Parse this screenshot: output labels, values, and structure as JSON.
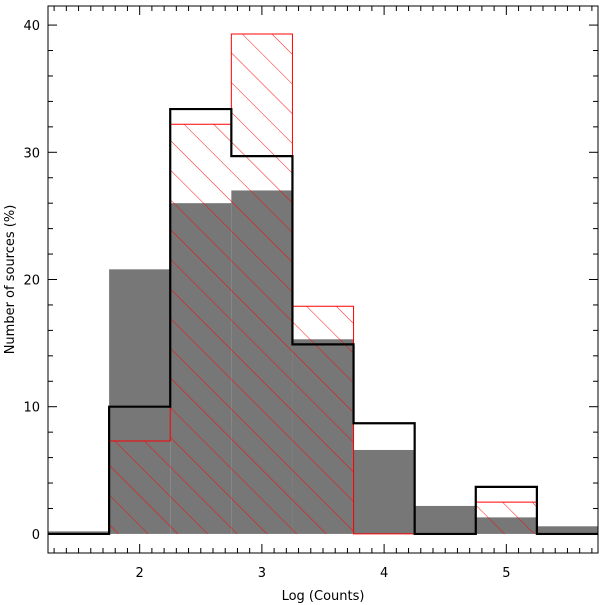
{
  "chart_data": {
    "type": "bar",
    "title": "",
    "xlabel": "Log (Counts)",
    "ylabel": "Number of sources (%)",
    "xlim": [
      1.25,
      5.75
    ],
    "ylim": [
      -1.5,
      41.5
    ],
    "xticks": [
      2,
      3,
      4,
      5
    ],
    "yticks": [
      0,
      10,
      20,
      30,
      40
    ],
    "x_minor_step": 0.1,
    "y_minor_step": 2,
    "grid": false,
    "legend": "none",
    "bin_edges": [
      1.25,
      1.75,
      2.25,
      2.75,
      3.25,
      3.75,
      4.25,
      4.75,
      5.25,
      5.75
    ],
    "series": [
      {
        "style": "filled-gray",
        "color": "#777777",
        "values": [
          0.2,
          20.8,
          26.0,
          27.0,
          15.3,
          6.6,
          2.2,
          1.3,
          0.6
        ]
      },
      {
        "style": "red-hatched",
        "color": "#ff0000",
        "values": [
          0,
          7.3,
          32.2,
          39.3,
          17.9,
          0,
          0,
          2.5,
          0
        ]
      },
      {
        "style": "black-step",
        "color": "#000000",
        "values": [
          0,
          10.0,
          33.4,
          29.7,
          14.9,
          8.7,
          0,
          3.7,
          0
        ]
      }
    ]
  }
}
